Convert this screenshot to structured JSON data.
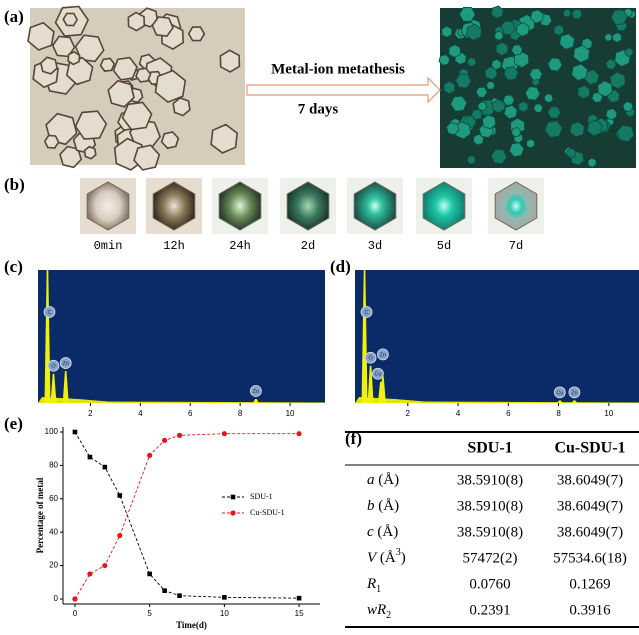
{
  "panels": {
    "a": "(a)",
    "b": "(b)",
    "f": "(f)"
  },
  "arrow": {
    "line1": "Metal-ion metathesis",
    "line2": "7 days"
  },
  "timeline": [
    "0min",
    "12h",
    "24h",
    "2d",
    "3d",
    "5d",
    "7d"
  ],
  "chart_data": [
    {
      "type": "spectrum",
      "label": "(c)",
      "xlim": [
        -0.1,
        11.4
      ],
      "xticks": [
        2,
        4,
        6,
        8,
        10
      ],
      "ylim": [
        0,
        100
      ],
      "x": [
        0.28,
        0.52,
        1.01,
        8.63
      ],
      "values": [
        100,
        22,
        24,
        3
      ],
      "peak_labels": [
        "C",
        "O",
        "Zn",
        "Zn"
      ]
    },
    {
      "type": "spectrum",
      "label": "(d)",
      "xlim": [
        -0.1,
        11.2
      ],
      "xticks": [
        2,
        4,
        6,
        8,
        10
      ],
      "ylim": [
        0,
        100
      ],
      "x": [
        0.28,
        0.52,
        0.93,
        1.01,
        8.05,
        8.63
      ],
      "values": [
        100,
        28,
        16,
        20,
        2,
        2
      ],
      "peak_labels": [
        "C",
        "O",
        "Cu",
        "Zn",
        "Cu",
        "Zn"
      ]
    },
    {
      "type": "line",
      "label": "(e)",
      "xlabel": "Time(d)",
      "ylabel": "Percentage of metal",
      "xlim": [
        -0.8,
        16.4
      ],
      "ylim": [
        -3,
        103
      ],
      "xticks": [
        0,
        5,
        10,
        15
      ],
      "yticks": [
        0,
        20,
        40,
        60,
        80,
        100
      ],
      "x": [
        0,
        1,
        2,
        3,
        5,
        6,
        7,
        10,
        15
      ],
      "series": [
        {
          "name": "SDU-1",
          "color": "#000000",
          "marker": "square",
          "values": [
            100,
            85,
            79,
            62,
            15,
            5,
            2,
            1,
            0.5
          ]
        },
        {
          "name": "Cu-SDU-1",
          "color": "#e8141c",
          "marker": "circle",
          "values": [
            0,
            15,
            20,
            38,
            86,
            95,
            98,
            99,
            99
          ]
        }
      ]
    }
  ],
  "table": {
    "header": [
      "SDU-1",
      "Cu-SDU-1"
    ],
    "rows": [
      {
        "symbol": "a",
        "unit": " (Å)",
        "values": [
          "38.5910(8)",
          "38.6049(7)"
        ]
      },
      {
        "symbol": "b",
        "unit": " (Å)",
        "values": [
          "38.5910(8)",
          "38.6049(7)"
        ]
      },
      {
        "symbol": "c",
        "unit": " (Å)",
        "values": [
          "38.5910(8)",
          "38.6049(7)"
        ]
      },
      {
        "symbol": "V",
        "unit": " (Å",
        "sup": "3",
        "close": ")",
        "values": [
          "57472(2)",
          "57534.6(18)"
        ]
      },
      {
        "symbol": "R",
        "sub": "1",
        "values": [
          "0.0760",
          "0.1269"
        ]
      },
      {
        "symbol": "wR",
        "sub": "2",
        "values": [
          "0.2391",
          "0.3916"
        ]
      }
    ]
  }
}
